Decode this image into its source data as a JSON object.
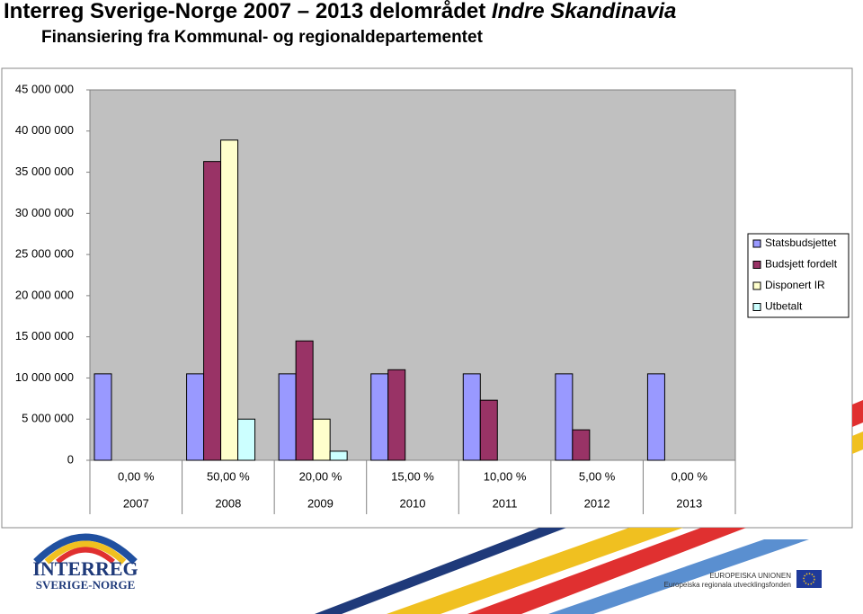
{
  "header": {
    "title": "Interreg Sverige-Norge 2007 – 2013 delområdet",
    "title_emphasis": "Indre Skandinavia",
    "subtitle": "Finansiering fra Kommunal- og regionaldepartementet"
  },
  "chart_data": {
    "type": "bar",
    "categories": [
      "2007",
      "2008",
      "2009",
      "2010",
      "2011",
      "2012",
      "2013"
    ],
    "category_percentages": [
      "0,00 %",
      "50,00 %",
      "20,00 %",
      "15,00 %",
      "10,00 %",
      "5,00 %",
      "0,00 %"
    ],
    "series": [
      {
        "name": "Statsbudsjettet",
        "color": "#9999ff",
        "values": [
          10500000,
          10500000,
          10500000,
          10500000,
          10500000,
          10500000,
          10500000
        ]
      },
      {
        "name": "Budsjett fordelt",
        "color": "#993366",
        "values": [
          null,
          36300000,
          14500000,
          11000000,
          7300000,
          3700000,
          null
        ]
      },
      {
        "name": "Disponert IR",
        "color": "#ffffcc",
        "values": [
          null,
          38900000,
          5000000,
          null,
          null,
          null,
          null
        ]
      },
      {
        "name": "Utbetalt",
        "color": "#ccffff",
        "values": [
          null,
          5000000,
          1100000,
          null,
          null,
          null,
          null
        ]
      }
    ],
    "ylim": [
      0,
      45000000
    ],
    "yticks": [
      0,
      {
        "value": 5000000,
        "label": "5 000 000"
      },
      {
        "value": 10000000,
        "label": "10 000 000"
      },
      {
        "value": 15000000,
        "label": "15 000 000"
      },
      {
        "value": 20000000,
        "label": "20 000 000"
      },
      {
        "value": 25000000,
        "label": "25 000 000"
      },
      {
        "value": 30000000,
        "label": "30 000 000"
      },
      {
        "value": 35000000,
        "label": "35 000 000"
      },
      {
        "value": 40000000,
        "label": "40 000 000"
      },
      {
        "value": 45000000,
        "label": "45 000 000"
      }
    ],
    "grid": false,
    "legend": "right",
    "plot_background": "#c0c0c0"
  },
  "footer": {
    "logo_line1": "INTERREG",
    "logo_line2": "SVERIGE-NORGE",
    "eu_line1": "EUROPEISKA UNIONEN",
    "eu_line2": "Europeiska regionala utvecklingsfonden"
  }
}
